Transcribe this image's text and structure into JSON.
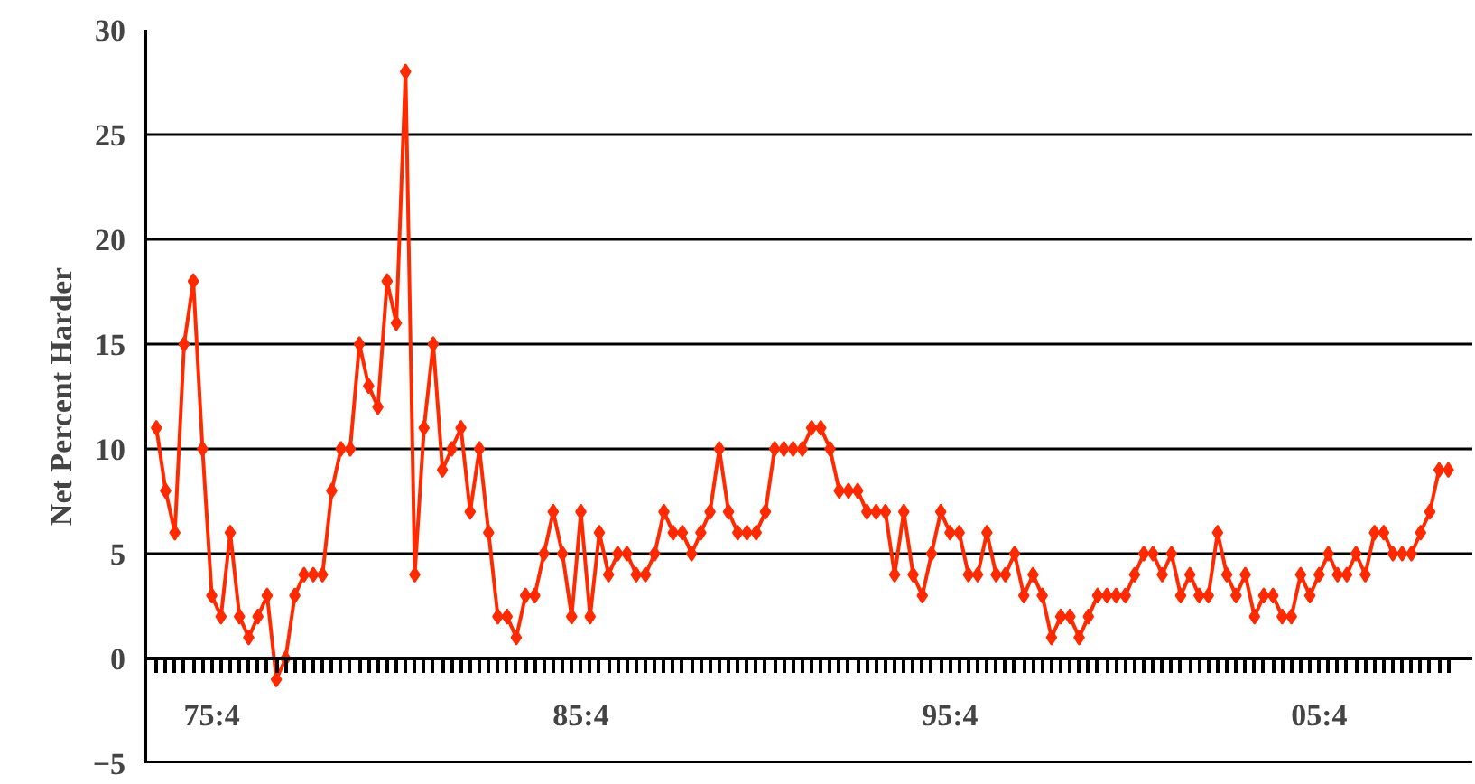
{
  "chart_data": {
    "type": "line",
    "ylabel": "Net Percent Harder",
    "categories": [
      null,
      null,
      null,
      null,
      null,
      null,
      "75:4",
      null,
      null,
      null,
      null,
      null,
      null,
      null,
      null,
      null,
      null,
      null,
      null,
      null,
      null,
      null,
      null,
      null,
      null,
      null,
      null,
      null,
      null,
      null,
      null,
      null,
      null,
      null,
      null,
      null,
      null,
      null,
      null,
      null,
      null,
      null,
      null,
      null,
      null,
      null,
      "85:4",
      null,
      null,
      null,
      null,
      null,
      null,
      null,
      null,
      null,
      null,
      null,
      null,
      null,
      null,
      null,
      null,
      null,
      null,
      null,
      null,
      null,
      null,
      null,
      null,
      null,
      null,
      null,
      null,
      null,
      null,
      null,
      null,
      null,
      null,
      null,
      null,
      null,
      null,
      null,
      "95:4",
      null,
      null,
      null,
      null,
      null,
      null,
      null,
      null,
      null,
      null,
      null,
      null,
      null,
      null,
      null,
      null,
      null,
      null,
      null,
      null,
      null,
      null,
      null,
      null,
      null,
      null,
      null,
      null,
      null,
      null,
      null,
      null,
      null,
      null,
      null,
      null,
      null,
      null,
      null,
      "05:4",
      null,
      null,
      null,
      null,
      null,
      null,
      null,
      null,
      null,
      null,
      null,
      null,
      null,
      null
    ],
    "series": [
      {
        "color": "#ff2a00",
        "values": [
          11,
          8,
          6,
          15,
          18,
          10,
          3,
          2,
          6,
          2,
          1,
          2,
          3,
          -1,
          0,
          3,
          4,
          4,
          4,
          8,
          10,
          10,
          15,
          13,
          12,
          18,
          16,
          28,
          4,
          11,
          15,
          9,
          10,
          11,
          7,
          10,
          6,
          2,
          2,
          1,
          3,
          3,
          5,
          7,
          5,
          2,
          7,
          2,
          6,
          4,
          5,
          5,
          4,
          4,
          5,
          7,
          6,
          6,
          5,
          6,
          7,
          10,
          7,
          6,
          6,
          6,
          7,
          10,
          10,
          10,
          10,
          11,
          11,
          10,
          8,
          8,
          8,
          7,
          7,
          7,
          4,
          7,
          4,
          3,
          5,
          7,
          6,
          6,
          4,
          4,
          6,
          4,
          4,
          5,
          3,
          4,
          3,
          1,
          2,
          2,
          1,
          2,
          3,
          3,
          3,
          3,
          4,
          5,
          5,
          4,
          5,
          3,
          4,
          3,
          3,
          6,
          4,
          3,
          4,
          2,
          3,
          3,
          2,
          2,
          4,
          3,
          4,
          5,
          4,
          4,
          5,
          4,
          6,
          6,
          5,
          5,
          5,
          6,
          7,
          9,
          9
        ]
      }
    ],
    "ylim": [
      -5,
      30
    ],
    "yticks": [
      -5,
      0,
      5,
      10,
      15,
      20,
      25,
      30
    ],
    "grid": "y",
    "marker": "diamond",
    "line_style": "solid"
  }
}
